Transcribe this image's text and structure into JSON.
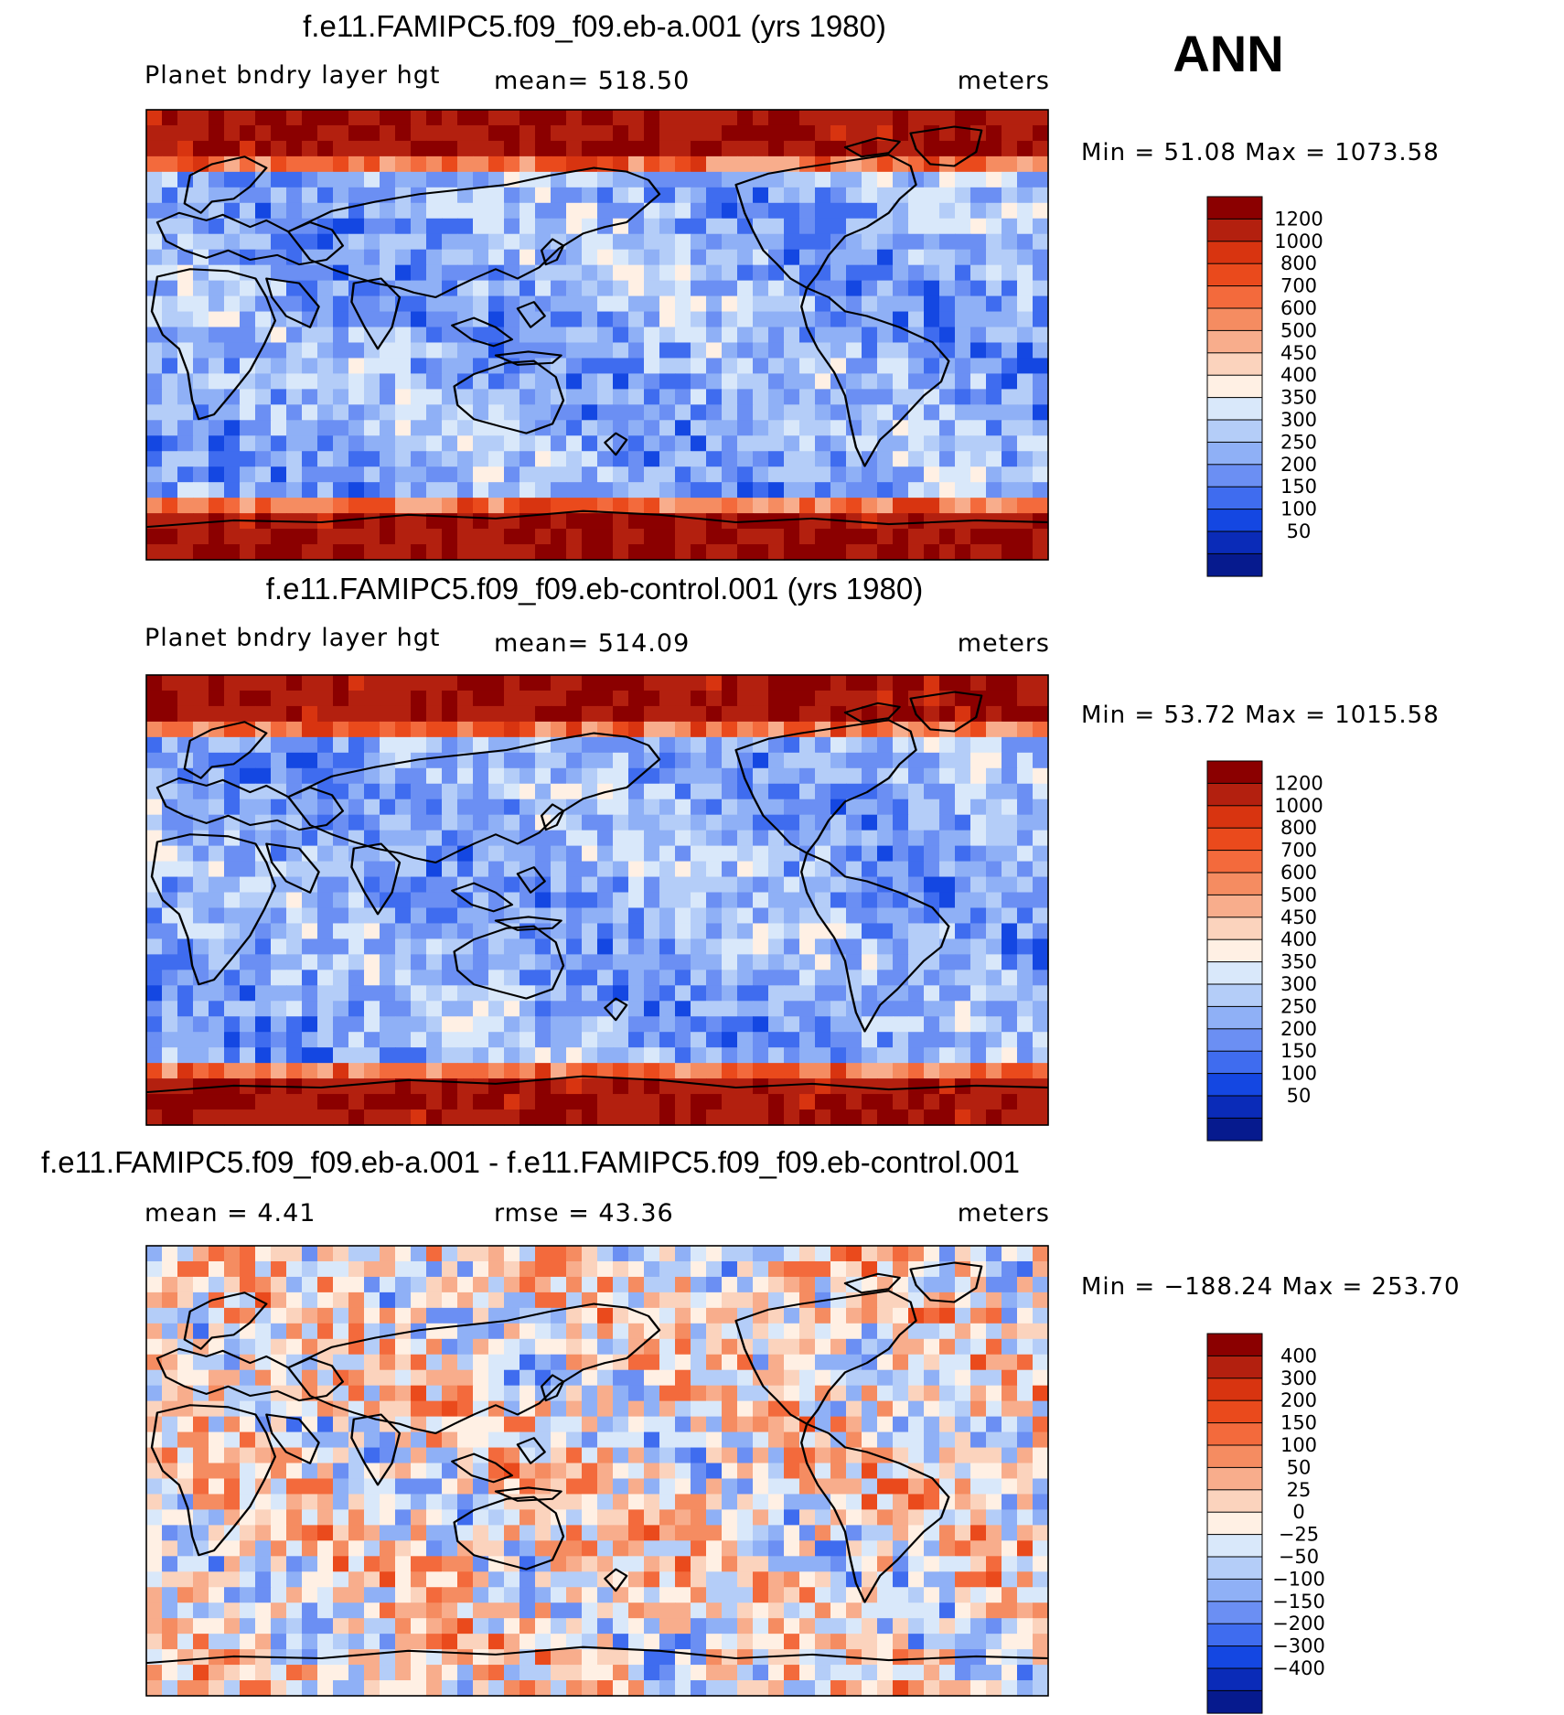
{
  "season": "ANN",
  "panels": [
    {
      "id": "top",
      "title": "f.e11.FAMIPC5.f09_f09.eb-a.001 (yrs 1980)",
      "left_label": "Planet bndry layer hgt",
      "center_label": "mean=  518.50",
      "units": "meters",
      "minmax": "Min =   51.08  Max  =  1073.58",
      "colorbar": {
        "labels": [
          "1200",
          "1000",
          "800",
          "700",
          "600",
          "500",
          "450",
          "400",
          "350",
          "300",
          "250",
          "200",
          "150",
          "100",
          "50"
        ],
        "colors": [
          "#8b0000",
          "#b3200f",
          "#d83410",
          "#ea4a1c",
          "#f36a3c",
          "#f58c61",
          "#f8ad8c",
          "#fbd3bd",
          "#fff0e4",
          "#d9e8fa",
          "#b4cdf8",
          "#8fb0f6",
          "#6b8ff3",
          "#3f6cef",
          "#1447e2",
          "#0a2bb8",
          "#061a8e"
        ]
      }
    },
    {
      "id": "mid",
      "title": "f.e11.FAMIPC5.f09_f09.eb-control.001 (yrs 1980)",
      "left_label": "Planet bndry layer hgt",
      "center_label": "mean=  514.09",
      "units": "meters",
      "minmax": "Min =   53.72  Max  =  1015.58",
      "colorbar": {
        "labels": [
          "1200",
          "1000",
          "800",
          "700",
          "600",
          "500",
          "450",
          "400",
          "350",
          "300",
          "250",
          "200",
          "150",
          "100",
          "50"
        ],
        "colors": [
          "#8b0000",
          "#b3200f",
          "#d83410",
          "#ea4a1c",
          "#f36a3c",
          "#f58c61",
          "#f8ad8c",
          "#fbd3bd",
          "#fff0e4",
          "#d9e8fa",
          "#b4cdf8",
          "#8fb0f6",
          "#6b8ff3",
          "#3f6cef",
          "#1447e2",
          "#0a2bb8",
          "#061a8e"
        ]
      }
    },
    {
      "id": "bot",
      "title": "f.e11.FAMIPC5.f09_f09.eb-a.001 - f.e11.FAMIPC5.f09_f09.eb-control.001",
      "left_label": "mean  =     4.41",
      "center_label": "rmse  =    43.36",
      "units": "meters",
      "minmax": "Min  = −188.24  Max  =  253.70",
      "colorbar": {
        "labels": [
          "400",
          "300",
          "200",
          "150",
          "100",
          "50",
          "25",
          "0",
          "−25",
          "−50",
          "−100",
          "−150",
          "−200",
          "−300",
          "−400"
        ],
        "colors": [
          "#8b0000",
          "#b3200f",
          "#d83410",
          "#ea4a1c",
          "#f36a3c",
          "#f58c61",
          "#f8ad8c",
          "#fbd3bd",
          "#fff0e4",
          "#d9e8fa",
          "#b4cdf8",
          "#8fb0f6",
          "#6b8ff3",
          "#3f6cef",
          "#1447e2",
          "#0a2bb8",
          "#061a8e"
        ]
      }
    }
  ],
  "chart_data": [
    {
      "type": "heatmap",
      "title": "f.e11.FAMIPC5.f09_f09.eb-a.001 (yrs 1980)",
      "variable": "Planet bndry layer hgt",
      "units": "meters",
      "mean": 518.5,
      "min": 51.08,
      "max": 1073.58,
      "contour_levels": [
        50,
        100,
        150,
        200,
        250,
        300,
        350,
        400,
        450,
        500,
        600,
        700,
        800,
        1000,
        1200
      ]
    },
    {
      "type": "heatmap",
      "title": "f.e11.FAMIPC5.f09_f09.eb-control.001 (yrs 1980)",
      "variable": "Planet bndry layer hgt",
      "units": "meters",
      "mean": 514.09,
      "min": 53.72,
      "max": 1015.58,
      "contour_levels": [
        50,
        100,
        150,
        200,
        250,
        300,
        350,
        400,
        450,
        500,
        600,
        700,
        800,
        1000,
        1200
      ]
    },
    {
      "type": "heatmap",
      "title": "f.e11.FAMIPC5.f09_f09.eb-a.001 - f.e11.FAMIPC5.f09_f09.eb-control.001",
      "units": "meters",
      "mean": 4.41,
      "rmse": 43.36,
      "min": -188.24,
      "max": 253.7,
      "contour_levels": [
        -400,
        -300,
        -200,
        -150,
        -100,
        -50,
        -25,
        0,
        25,
        50,
        100,
        150,
        200,
        300,
        400
      ]
    }
  ]
}
